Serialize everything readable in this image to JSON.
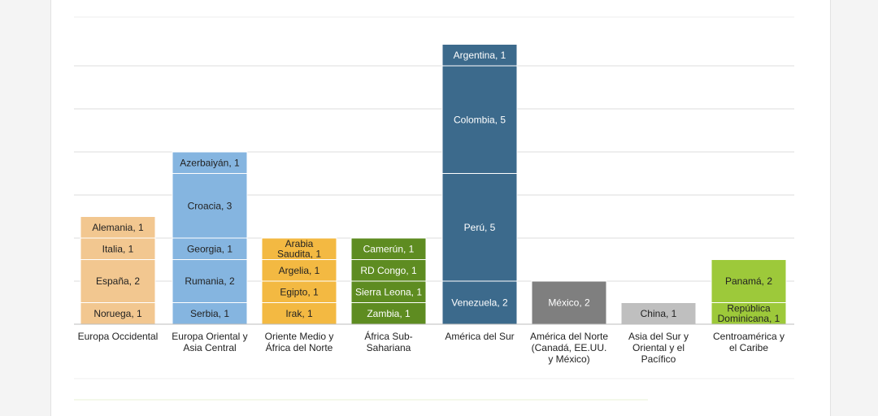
{
  "chart_data": {
    "type": "bar",
    "stacked": true,
    "title": "",
    "xlabel": "",
    "ylabel": "",
    "ylim": [
      0,
      13
    ],
    "grid": true,
    "legend": "none",
    "categories": [
      {
        "label": [
          "Europa Occidental"
        ],
        "color": "#f2c790",
        "segments": [
          {
            "name": "Noruega",
            "value": 1,
            "label": [
              "Noruega, 1"
            ]
          },
          {
            "name": "España",
            "value": 2,
            "label": [
              "España, 2"
            ]
          },
          {
            "name": "Italia",
            "value": 1,
            "label": [
              "Italia, 1"
            ]
          },
          {
            "name": "Alemania",
            "value": 1,
            "label": [
              "Alemania, 1"
            ]
          }
        ]
      },
      {
        "label": [
          "Europa Oriental y",
          "Asia Central"
        ],
        "color": "#85b5e0",
        "segments": [
          {
            "name": "Serbia",
            "value": 1,
            "label": [
              "Serbia, 1"
            ]
          },
          {
            "name": "Rumania",
            "value": 2,
            "label": [
              "Rumania, 2"
            ]
          },
          {
            "name": "Georgia",
            "value": 1,
            "label": [
              "Georgia, 1"
            ]
          },
          {
            "name": "Croacia",
            "value": 3,
            "label": [
              "Croacia, 3"
            ]
          },
          {
            "name": "Azerbaiyán",
            "value": 1,
            "label": [
              "Azerbaiyán, 1"
            ]
          }
        ]
      },
      {
        "label": [
          "Oriente Medio y",
          "África del Norte"
        ],
        "color": "#f3b942",
        "segments": [
          {
            "name": "Irak",
            "value": 1,
            "label": [
              "Irak, 1"
            ]
          },
          {
            "name": "Egipto",
            "value": 1,
            "label": [
              "Egipto, 1"
            ]
          },
          {
            "name": "Argelia",
            "value": 1,
            "label": [
              "Argelia, 1"
            ]
          },
          {
            "name": "Arabia Saudita",
            "value": 1,
            "label": [
              "Arabia",
              "Saudita, 1"
            ]
          }
        ]
      },
      {
        "label": [
          "África Sub-",
          "Sahariana"
        ],
        "color": "#5e8c21",
        "segments": [
          {
            "name": "Zambia",
            "value": 1,
            "label": [
              "Zambia, 1"
            ]
          },
          {
            "name": "Sierra Leona",
            "value": 1,
            "label": [
              "Sierra Leona, 1"
            ]
          },
          {
            "name": "RD Congo",
            "value": 1,
            "label": [
              "RD Congo, 1"
            ]
          },
          {
            "name": "Camerún",
            "value": 1,
            "label": [
              "Camerún, 1"
            ]
          }
        ]
      },
      {
        "label": [
          "América del Sur"
        ],
        "color": "#3c6a8c",
        "segments": [
          {
            "name": "Venezuela",
            "value": 2,
            "label": [
              "Venezuela, 2"
            ]
          },
          {
            "name": "Perú",
            "value": 5,
            "label": [
              "Perú, 5"
            ]
          },
          {
            "name": "Colombia",
            "value": 5,
            "label": [
              "Colombia, 5"
            ]
          },
          {
            "name": "Argentina",
            "value": 1,
            "label": [
              "Argentina, 1"
            ]
          }
        ]
      },
      {
        "label": [
          "América del Norte",
          "(Canadá, EE.UU.",
          "y México)"
        ],
        "color": "#7f7f7f",
        "segments": [
          {
            "name": "México",
            "value": 2,
            "label": [
              "México, 2"
            ]
          }
        ]
      },
      {
        "label": [
          "Asia del Sur y",
          "Oriental y el",
          "Pacífico"
        ],
        "color": "#bfbfbf",
        "segments": [
          {
            "name": "China",
            "value": 1,
            "label": [
              "China, 1"
            ]
          }
        ]
      },
      {
        "label": [
          "Centroamérica y",
          "el Caribe"
        ],
        "color": "#9dc93a",
        "segments": [
          {
            "name": "República Dominicana",
            "value": 1,
            "label": [
              "República",
              "Dominicana, 1"
            ]
          },
          {
            "name": "Panamá",
            "value": 2,
            "label": [
              "Panamá, 2"
            ]
          }
        ]
      }
    ]
  }
}
